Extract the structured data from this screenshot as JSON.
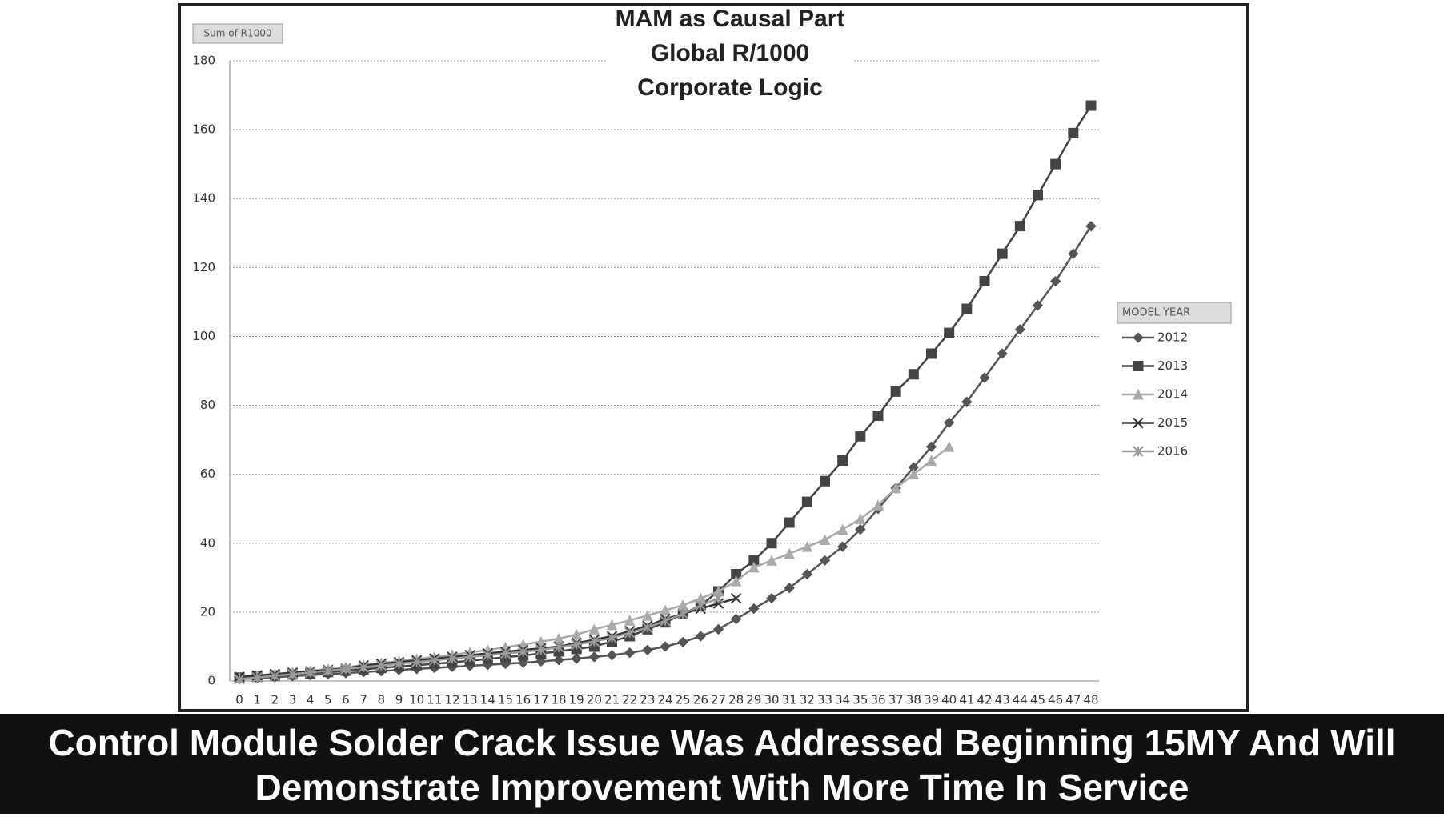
{
  "chart_data": {
    "type": "line",
    "title": [
      "MAM as Causal Part",
      "Global R/1000",
      "Corporate Logic"
    ],
    "field_button": "Sum of R1000",
    "legend_title": "MODEL YEAR",
    "legend": "right",
    "grid": true,
    "caption": [
      "Control Module Solder Crack Issue Was Addressed Beginning 15MY And Will",
      "Demonstrate Improvement With More Time In Service"
    ],
    "categories": [
      "0",
      "1",
      "2",
      "3",
      "4",
      "5",
      "6",
      "7",
      "8",
      "9",
      "10",
      "11",
      "12",
      "13",
      "14",
      "15",
      "16",
      "17",
      "18",
      "19",
      "20",
      "21",
      "22",
      "23",
      "24",
      "25",
      "26",
      "27",
      "28",
      "29",
      "30",
      "31",
      "32",
      "33",
      "34",
      "35",
      "36",
      "37",
      "38",
      "39",
      "40",
      "41",
      "42",
      "43",
      "44",
      "45",
      "46",
      "47",
      "48"
    ],
    "ylim": [
      0,
      180
    ],
    "yticks": [
      0,
      20,
      40,
      60,
      80,
      100,
      120,
      140,
      160,
      180
    ],
    "series": [
      {
        "name": "2012",
        "color": "#555555",
        "marker": "diamond",
        "values": [
          0.5,
          0.8,
          1.1,
          1.4,
          1.7,
          2,
          2.3,
          2.6,
          2.9,
          3.2,
          3.5,
          3.8,
          4.1,
          4.4,
          4.7,
          5,
          5.3,
          5.7,
          6.1,
          6.5,
          7,
          7.5,
          8.2,
          9,
          10,
          11.3,
          13,
          15,
          18,
          21,
          24,
          27,
          31,
          35,
          39,
          44,
          50,
          56,
          62,
          68,
          75,
          81,
          88,
          95,
          102,
          109,
          116,
          124,
          132
        ]
      },
      {
        "name": "2013",
        "color": "#444444",
        "marker": "square",
        "values": [
          1,
          1.3,
          1.6,
          1.9,
          2.2,
          2.6,
          3,
          3.4,
          3.8,
          4.2,
          4.6,
          5,
          5.4,
          5.9,
          6.4,
          6.9,
          7.4,
          8,
          8.6,
          9.3,
          10,
          11.5,
          13,
          15,
          17,
          19.5,
          22,
          26,
          31,
          35,
          40,
          46,
          52,
          58,
          64,
          71,
          77,
          84,
          89,
          95,
          101,
          108,
          116,
          124,
          132,
          141,
          150,
          159,
          167
        ]
      },
      {
        "name": "2014",
        "color": "#aaaaaa",
        "marker": "triangle",
        "values": [
          1,
          1.5,
          2,
          2.5,
          3,
          3.5,
          4,
          4.6,
          5.2,
          5.8,
          6.4,
          7,
          7.6,
          8.3,
          9,
          9.8,
          10.6,
          11.4,
          12.3,
          13.5,
          15,
          16.3,
          17.6,
          19,
          20.5,
          22,
          24,
          26,
          29,
          33,
          35,
          37,
          39,
          41,
          44,
          47,
          51,
          56,
          60,
          64,
          68,
          null,
          null,
          null,
          null,
          null,
          null,
          null,
          null
        ]
      },
      {
        "name": "2015",
        "color": "#333333",
        "marker": "x",
        "values": [
          1.2,
          1.6,
          2,
          2.4,
          2.8,
          3.2,
          3.6,
          4.5,
          5,
          5.5,
          6,
          6.5,
          7,
          7.5,
          8,
          8.5,
          9,
          9.5,
          10,
          11,
          12,
          13,
          14.5,
          16,
          18,
          19.5,
          21,
          22.5,
          24,
          null,
          null,
          null,
          null,
          null,
          null,
          null,
          null,
          null,
          null,
          null,
          null,
          null,
          null,
          null,
          null,
          null,
          null,
          null,
          null
        ]
      },
      {
        "name": "2016",
        "color": "#999999",
        "marker": "star",
        "values": [
          0.5,
          1,
          1.5,
          2,
          2.5,
          3,
          3.5,
          4,
          4.5,
          5,
          5.5,
          6,
          6.5,
          7,
          7.5,
          8,
          8.5,
          9,
          9.8,
          10.6,
          11.5,
          12.5,
          14,
          15.5,
          17.5,
          19.5,
          22,
          24,
          null,
          null,
          null,
          null,
          null,
          null,
          null,
          null,
          null,
          null,
          null,
          null,
          null,
          null,
          null,
          null,
          null,
          null,
          null,
          null,
          null
        ]
      }
    ]
  }
}
